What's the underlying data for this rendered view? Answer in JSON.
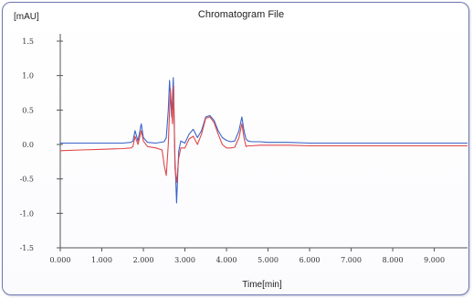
{
  "chart_data": {
    "type": "line",
    "title": "Chromatogram File",
    "xlabel": "Time[min]",
    "ylabel": "[mAU]",
    "xlim": [
      0,
      9.8
    ],
    "ylim": [
      -1.5,
      1.5
    ],
    "x_ticks": [
      0,
      1,
      2,
      3,
      4,
      5,
      6,
      7,
      8,
      9
    ],
    "x_tick_labels": [
      "0.000",
      "1.000",
      "2.000",
      "3.000",
      "4.000",
      "5.000",
      "6.000",
      "7.000",
      "8.000",
      "9.000"
    ],
    "y_ticks": [
      1.5,
      1.0,
      0.5,
      0.0,
      -0.5,
      -1.0,
      -1.5
    ],
    "y_tick_labels": [
      "1.5",
      "1.0",
      "0.5",
      "0.0",
      "-0.5",
      "-1.0",
      "-1.5"
    ],
    "grid": false,
    "series": [
      {
        "color": "#3a64c8",
        "x": [
          0,
          0.5,
          1.0,
          1.5,
          1.7,
          1.75,
          1.8,
          1.87,
          1.95,
          2.0,
          2.1,
          2.3,
          2.5,
          2.55,
          2.6,
          2.63,
          2.68,
          2.72,
          2.76,
          2.8,
          2.85,
          2.9,
          3.0,
          3.1,
          3.2,
          3.3,
          3.4,
          3.5,
          3.6,
          3.7,
          3.8,
          3.9,
          4.0,
          4.1,
          4.2,
          4.3,
          4.37,
          4.42,
          4.47,
          4.52,
          4.6,
          4.8,
          5.0,
          5.5,
          6.0,
          6.5,
          7.0,
          7.5,
          8.0,
          8.5,
          9.0,
          9.5,
          9.8
        ],
        "y": [
          0.02,
          0.02,
          0.02,
          0.02,
          0.03,
          0.05,
          0.2,
          0.05,
          0.3,
          0.1,
          0.03,
          0.02,
          0.04,
          0.1,
          0.5,
          0.93,
          0.4,
          0.97,
          -0.2,
          -0.85,
          -0.1,
          0.05,
          0.02,
          0.15,
          0.22,
          0.1,
          0.2,
          0.4,
          0.42,
          0.35,
          0.2,
          0.1,
          0.06,
          0.04,
          0.05,
          0.2,
          0.4,
          0.2,
          0.08,
          0.05,
          0.04,
          0.04,
          0.03,
          0.03,
          0.02,
          0.02,
          0.02,
          0.02,
          0.02,
          0.02,
          0.02,
          0.02,
          0.02
        ]
      },
      {
        "color": "#e04848",
        "x": [
          0,
          0.5,
          1.0,
          1.5,
          1.7,
          1.75,
          1.8,
          1.87,
          1.95,
          2.0,
          2.1,
          2.3,
          2.45,
          2.5,
          2.55,
          2.6,
          2.65,
          2.7,
          2.73,
          2.76,
          2.8,
          2.85,
          2.9,
          3.0,
          3.1,
          3.2,
          3.3,
          3.4,
          3.5,
          3.6,
          3.7,
          3.8,
          3.9,
          4.0,
          4.1,
          4.2,
          4.3,
          4.37,
          4.42,
          4.47,
          4.52,
          4.6,
          4.8,
          5.0,
          5.5,
          6.0,
          6.5,
          7.0,
          7.5,
          8.0,
          8.5,
          9.0,
          9.5,
          9.8
        ],
        "y": [
          -0.09,
          -0.08,
          -0.07,
          -0.06,
          -0.05,
          -0.03,
          0.12,
          0.0,
          0.2,
          0.05,
          -0.03,
          -0.05,
          -0.08,
          -0.3,
          -0.45,
          0.0,
          0.8,
          0.3,
          0.85,
          -0.35,
          -0.55,
          -0.2,
          -0.05,
          -0.05,
          0.08,
          0.12,
          0.0,
          0.15,
          0.38,
          0.4,
          0.32,
          0.15,
          0.0,
          -0.05,
          -0.05,
          -0.04,
          0.1,
          0.3,
          0.1,
          -0.03,
          -0.02,
          -0.02,
          -0.01,
          -0.01,
          -0.01,
          -0.02,
          -0.02,
          -0.02,
          -0.02,
          -0.02,
          -0.02,
          -0.02,
          -0.02,
          -0.02
        ]
      }
    ]
  }
}
